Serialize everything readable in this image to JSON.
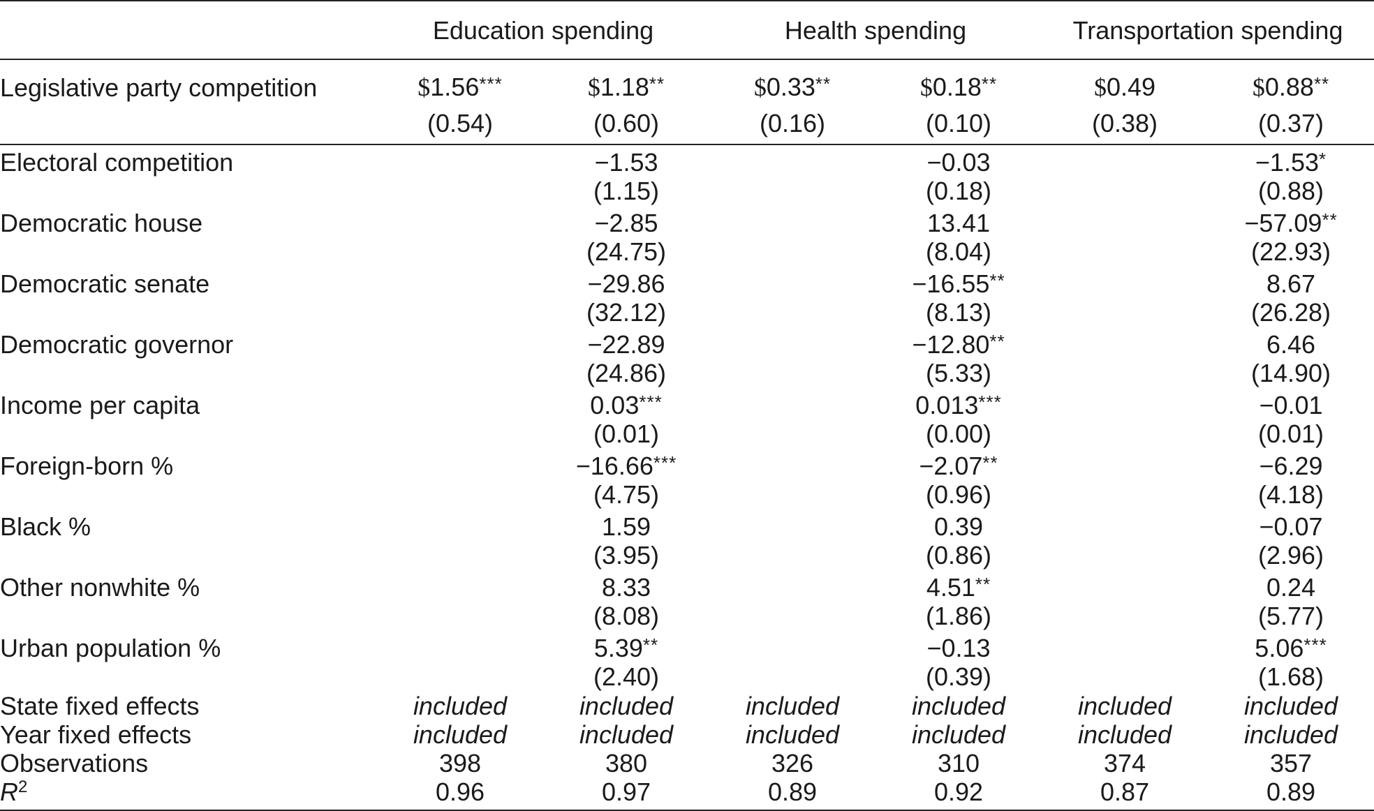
{
  "column_groups": [
    "Education spending",
    "Health spending",
    "Transportation spending"
  ],
  "lead_row": {
    "label": "Legislative party competition",
    "coefs": [
      {
        "dollar": "$",
        "value": "1.56",
        "stars": "***"
      },
      {
        "dollar": "$",
        "value": "1.18",
        "stars": "**"
      },
      {
        "dollar": "$",
        "value": "0.33",
        "stars": "**"
      },
      {
        "dollar": "$",
        "value": "0.18",
        "stars": "**"
      },
      {
        "dollar": "$",
        "value": "0.49",
        "stars": ""
      },
      {
        "dollar": "$",
        "value": "0.88",
        "stars": "**"
      }
    ],
    "ses": [
      "(0.54)",
      "(0.60)",
      "(0.16)",
      "(0.10)",
      "(0.38)",
      "(0.37)"
    ]
  },
  "controls": [
    {
      "label": "Electoral competition",
      "edu": {
        "value": "−1.53",
        "stars": ""
      },
      "edu_se": "(1.15)",
      "health": {
        "value": "−0.03",
        "stars": ""
      },
      "health_se": "(0.18)",
      "trans": {
        "value": "−1.53",
        "stars": "*"
      },
      "trans_se": "(0.88)"
    },
    {
      "label": "Democratic house",
      "edu": {
        "value": "−2.85",
        "stars": ""
      },
      "edu_se": "(24.75)",
      "health": {
        "value": "13.41",
        "stars": ""
      },
      "health_se": "(8.04)",
      "trans": {
        "value": "−57.09",
        "stars": "**"
      },
      "trans_se": "(22.93)"
    },
    {
      "label": "Democratic senate",
      "edu": {
        "value": "−29.86",
        "stars": ""
      },
      "edu_se": "(32.12)",
      "health": {
        "value": "−16.55",
        "stars": "**"
      },
      "health_se": "(8.13)",
      "trans": {
        "value": "8.67",
        "stars": ""
      },
      "trans_se": "(26.28)"
    },
    {
      "label": "Democratic governor",
      "edu": {
        "value": "−22.89",
        "stars": ""
      },
      "edu_se": "(24.86)",
      "health": {
        "value": "−12.80",
        "stars": "**"
      },
      "health_se": "(5.33)",
      "trans": {
        "value": "6.46",
        "stars": ""
      },
      "trans_se": "(14.90)"
    },
    {
      "label": "Income per capita",
      "edu": {
        "value": "0.03",
        "stars": "***"
      },
      "edu_se": "(0.01)",
      "health": {
        "value": "0.013",
        "stars": "***"
      },
      "health_se": "(0.00)",
      "trans": {
        "value": "−0.01",
        "stars": ""
      },
      "trans_se": "(0.01)"
    },
    {
      "label": "Foreign-born %",
      "edu": {
        "value": "−16.66",
        "stars": "***"
      },
      "edu_se": "(4.75)",
      "health": {
        "value": "−2.07",
        "stars": "**"
      },
      "health_se": "(0.96)",
      "trans": {
        "value": "−6.29",
        "stars": ""
      },
      "trans_se": "(4.18)"
    },
    {
      "label": "Black %",
      "edu": {
        "value": "1.59",
        "stars": ""
      },
      "edu_se": "(3.95)",
      "health": {
        "value": "0.39",
        "stars": ""
      },
      "health_se": "(0.86)",
      "trans": {
        "value": "−0.07",
        "stars": ""
      },
      "trans_se": "(2.96)"
    },
    {
      "label": "Other nonwhite %",
      "edu": {
        "value": "8.33",
        "stars": ""
      },
      "edu_se": "(8.08)",
      "health": {
        "value": "4.51",
        "stars": "**"
      },
      "health_se": "(1.86)",
      "trans": {
        "value": "0.24",
        "stars": ""
      },
      "trans_se": "(5.77)"
    },
    {
      "label": "Urban population %",
      "edu": {
        "value": "5.39",
        "stars": "**"
      },
      "edu_se": "(2.40)",
      "health": {
        "value": "−0.13",
        "stars": ""
      },
      "health_se": "(0.39)",
      "trans": {
        "value": "5.06",
        "stars": "***"
      },
      "trans_se": "(1.68)"
    }
  ],
  "fixed_effects": [
    {
      "label": "State fixed effects",
      "values": [
        "included",
        "included",
        "included",
        "included",
        "included",
        "included"
      ]
    },
    {
      "label": "Year fixed effects",
      "values": [
        "included",
        "included",
        "included",
        "included",
        "included",
        "included"
      ]
    }
  ],
  "observations": {
    "label": "Observations",
    "values": [
      "398",
      "380",
      "326",
      "310",
      "374",
      "357"
    ]
  },
  "r_squared": {
    "label_letter": "R",
    "label_sup": "2",
    "values": [
      "0.96",
      "0.97",
      "0.89",
      "0.92",
      "0.87",
      "0.89"
    ]
  }
}
